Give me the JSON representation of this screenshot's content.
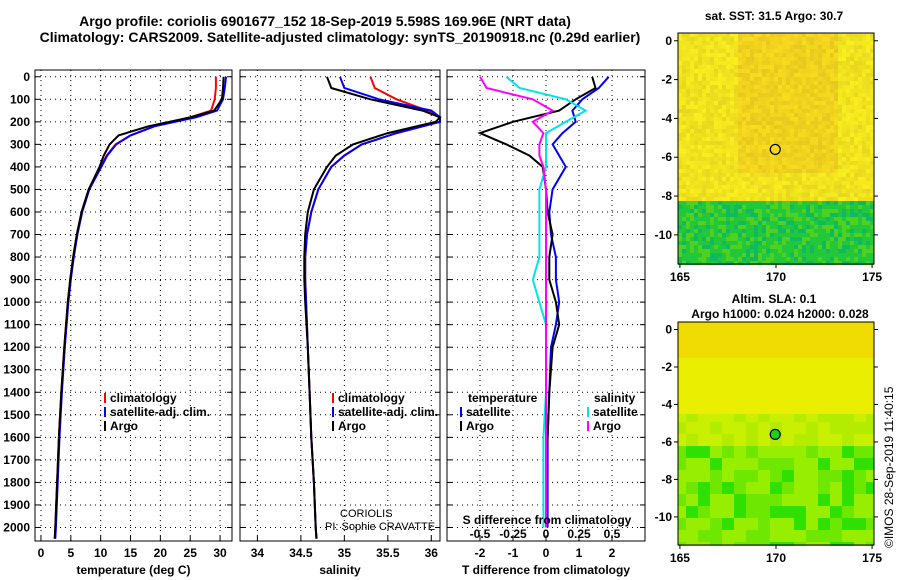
{
  "title_line1": "Argo profile: coriolis 6901677_152 18-Sep-2019 5.598S 169.96E (NRT data)",
  "title_line2": "Climatology: CARS2009. Satellite-adjusted climatology: synTS_20190918.nc (0.29d earlier)",
  "chart_data": [
    {
      "type": "line",
      "xlabel": "temperature (deg C)",
      "xlim": [
        -1,
        32
      ],
      "ylim": [
        2060,
        -30
      ],
      "xticks": [
        "0",
        "5",
        "10",
        "15",
        "20",
        "25",
        "30"
      ],
      "yticks": [
        "0",
        "100",
        "200",
        "300",
        "400",
        "500",
        "600",
        "700",
        "800",
        "900",
        "1000",
        "1100",
        "1200",
        "1300",
        "1400",
        "1500",
        "1600",
        "1700",
        "1800",
        "1900",
        "2000"
      ],
      "depth": [
        0,
        50,
        100,
        150,
        180,
        220,
        260,
        300,
        350,
        400,
        500,
        600,
        700,
        800,
        900,
        1000,
        1200,
        1400,
        1600,
        1800,
        2000,
        2050
      ],
      "series": [
        {
          "name": "climatology",
          "color": "#ff0000",
          "values": [
            29.3,
            29.3,
            29.1,
            28.5,
            25,
            19,
            15,
            12.5,
            11,
            10,
            8,
            6.8,
            6,
            5.4,
            4.9,
            4.5,
            3.9,
            3.4,
            3,
            2.7,
            2.4,
            2.3
          ]
        },
        {
          "name": "satellite-adj. clim.",
          "color": "#0000ff",
          "values": [
            31,
            30.8,
            30.5,
            29.5,
            26,
            19,
            15,
            12.6,
            11.1,
            10.1,
            8.1,
            6.9,
            6.1,
            5.5,
            5,
            4.6,
            4,
            3.5,
            3.1,
            2.8,
            2.5,
            2.4
          ]
        },
        {
          "name": "Argo",
          "color": "#000000",
          "values": [
            30.6,
            30.5,
            30.3,
            29,
            25,
            18,
            13,
            11.5,
            10.5,
            9.8,
            8,
            6.8,
            6,
            5.4,
            4.9,
            4.5,
            3.9,
            3.4,
            3,
            2.7,
            2.4,
            2.3
          ]
        }
      ]
    },
    {
      "type": "line",
      "xlabel": "salinity",
      "xlim": [
        33.8,
        36.1
      ],
      "ylim": [
        2060,
        -30
      ],
      "xticks": [
        "34",
        "34.5",
        "35",
        "35.5",
        "36"
      ],
      "depth": [
        0,
        50,
        100,
        150,
        180,
        200,
        250,
        300,
        350,
        400,
        500,
        600,
        700,
        800,
        900,
        1000,
        1200,
        1400,
        1600,
        1800,
        2000,
        2050
      ],
      "series": [
        {
          "name": "climatology",
          "color": "#ff0000",
          "values": [
            35.3,
            35.35,
            35.6,
            35.95,
            36.1,
            36.1,
            35.6,
            35.2,
            35.0,
            34.85,
            34.7,
            34.62,
            34.57,
            34.55,
            34.55,
            34.56,
            34.58,
            34.6,
            34.62,
            34.65,
            34.67,
            34.68
          ]
        },
        {
          "name": "satellite-adj. clim.",
          "color": "#0000ff",
          "values": [
            34.95,
            35,
            35.4,
            36,
            36.1,
            36.1,
            35.6,
            35.2,
            35.0,
            34.85,
            34.7,
            34.62,
            34.57,
            34.55,
            34.55,
            34.56,
            34.58,
            34.6,
            34.62,
            34.65,
            34.67,
            34.68
          ]
        },
        {
          "name": "Argo",
          "color": "#000000",
          "values": [
            34.8,
            34.85,
            35.3,
            35.9,
            36.1,
            36.05,
            35.5,
            35.1,
            34.9,
            34.8,
            34.65,
            34.58,
            34.55,
            34.54,
            34.54,
            34.55,
            34.58,
            34.6,
            34.62,
            34.65,
            34.67,
            34.68
          ]
        }
      ],
      "annotations": [
        "CORIOLIS",
        "PI: Sophie CRAVATTE"
      ]
    },
    {
      "type": "line",
      "xlabel": "T difference from climatology",
      "x2label": "S difference from climatology",
      "xlim": [
        -3,
        3
      ],
      "x2lim": [
        -0.75,
        0.75
      ],
      "ylim": [
        2060,
        -30
      ],
      "xticks": [
        "-2",
        "-1",
        "0",
        "1",
        "2"
      ],
      "x2ticks": [
        "-0.5",
        "-0.25",
        "0",
        "0.25",
        "0.5"
      ],
      "legend_headers": [
        "temperature",
        "salinity"
      ],
      "depth": [
        0,
        50,
        100,
        150,
        200,
        250,
        300,
        350,
        400,
        500,
        600,
        700,
        800,
        900,
        1000,
        1100,
        1200,
        1400,
        1600,
        1800,
        2000
      ],
      "series": [
        {
          "name": "satellite",
          "group": "temperature",
          "color": "#0000ff",
          "values": [
            1.9,
            1.6,
            1.1,
            0.8,
            0.9,
            0.5,
            0.2,
            0.4,
            0.6,
            0.2,
            0.1,
            0.15,
            0.3,
            0.3,
            0.4,
            0.3,
            0.15,
            0.1,
            0.05,
            0.05,
            0.05
          ]
        },
        {
          "name": "Argo",
          "group": "temperature",
          "color": "#000000",
          "values": [
            1.4,
            1.5,
            0.9,
            0.4,
            -1.0,
            -2.0,
            -1.2,
            -0.5,
            -0.1,
            0.0,
            0.05,
            0.2,
            0.1,
            0.1,
            0.3,
            0.4,
            0.2,
            0.1,
            0.05,
            0.0,
            0.0
          ]
        },
        {
          "name": "satellite",
          "group": "salinity",
          "color": "#00e5e5",
          "values": [
            -0.3,
            -0.2,
            0.15,
            0.3,
            0.15,
            0.0,
            0.0,
            0.0,
            0.0,
            -0.05,
            -0.05,
            -0.05,
            -0.05,
            -0.1,
            -0.05,
            0,
            0,
            0,
            -0.02,
            -0.02,
            -0.02
          ]
        },
        {
          "name": "Argo",
          "group": "salinity",
          "color": "#ff00ff",
          "values": [
            -0.5,
            -0.45,
            -0.1,
            0.05,
            -0.1,
            -0.02,
            -0.05,
            -0.05,
            -0.02,
            0,
            0,
            0,
            0,
            0,
            0,
            0,
            0,
            0,
            0,
            0,
            0
          ]
        }
      ]
    },
    {
      "type": "heatmap",
      "title": "sat. SST: 31.5 Argo: 30.7",
      "xticks": [
        "165",
        "170",
        "175"
      ],
      "yticks": [
        "0",
        "-2",
        "-4",
        "-6",
        "-8",
        "-10"
      ],
      "xlim": [
        164.9,
        175.1
      ],
      "ylim": [
        -11.5,
        0.4
      ],
      "marker": [
        169.96,
        -5.598
      ]
    },
    {
      "type": "heatmap",
      "title": "Altim. SLA: 0.1",
      "subtitle": "Argo h1000: 0.024 h2000: 0.028",
      "xticks": [
        "165",
        "170",
        "175"
      ],
      "yticks": [
        "0",
        "-2",
        "-4",
        "-6",
        "-8",
        "-10"
      ],
      "xlim": [
        164.9,
        175.1
      ],
      "ylim": [
        -11.5,
        0.4
      ],
      "marker": [
        169.96,
        -5.598
      ]
    }
  ],
  "credit": "©IMOS 28-Sep-2019 11:40:15"
}
